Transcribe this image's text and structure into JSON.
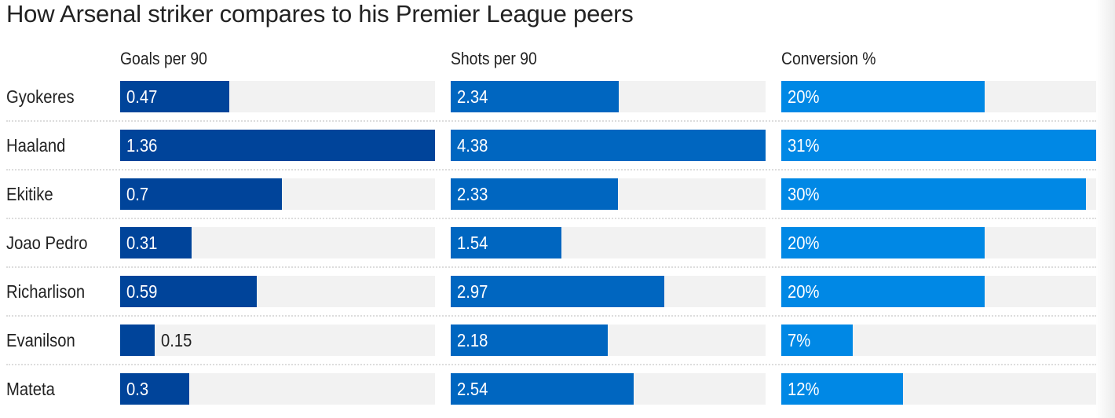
{
  "title": "How Arsenal striker compares to his Premier League peers",
  "chart_data": {
    "type": "bar",
    "title": "How Arsenal striker compares to his Premier League peers",
    "categories": [
      "Gyokeres",
      "Haaland",
      "Ekitike",
      "Joao Pedro",
      "Richarlison",
      "Evanilson",
      "Mateta"
    ],
    "series": [
      {
        "name": "Goals per 90",
        "color": "#00449a",
        "values": [
          0.47,
          1.36,
          0.7,
          0.31,
          0.59,
          0.15,
          0.3
        ],
        "labels": [
          "0.47",
          "1.36",
          "0.7",
          "0.31",
          "0.59",
          "0.15",
          "0.3"
        ]
      },
      {
        "name": "Shots per 90",
        "color": "#0066c0",
        "values": [
          2.34,
          4.38,
          2.33,
          1.54,
          2.97,
          2.18,
          2.54
        ],
        "labels": [
          "2.34",
          "4.38",
          "2.33",
          "1.54",
          "2.97",
          "2.18",
          "2.54"
        ]
      },
      {
        "name": "Conversion %",
        "color": "#0088e5",
        "values": [
          20,
          31,
          30,
          20,
          20,
          7,
          12
        ],
        "labels": [
          "20%",
          "31%",
          "30%",
          "20%",
          "20%",
          "7%",
          "12%"
        ]
      }
    ]
  }
}
